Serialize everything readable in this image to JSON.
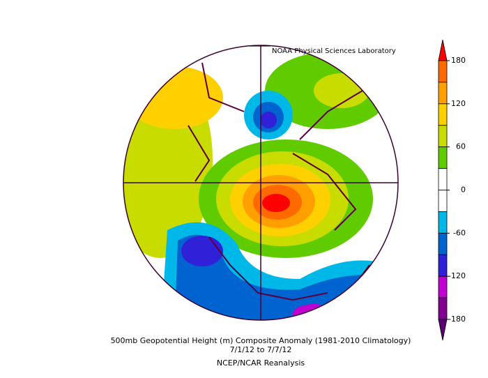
{
  "map": {
    "source": "NOAA Physical Sciences Laboratory",
    "title": "500mb Geopotential Height (m) Composite Anomaly (1981-2010 Climatology)",
    "date_range": "7/1/12  to 7/7/12",
    "dataset": "NCEP/NCAR Reanalysis"
  },
  "colorbar": {
    "ticks": [
      180,
      120,
      60,
      0,
      -60,
      -120,
      -180
    ],
    "colors": [
      "#ff0000",
      "#ff6a00",
      "#ffa000",
      "#ffd000",
      "#c8dc00",
      "#60cc00",
      "#ffffff",
      "#ffffff",
      "#00b8e8",
      "#0064d0",
      "#3020d8",
      "#c000d0",
      "#800090",
      "#5a0070"
    ]
  }
}
